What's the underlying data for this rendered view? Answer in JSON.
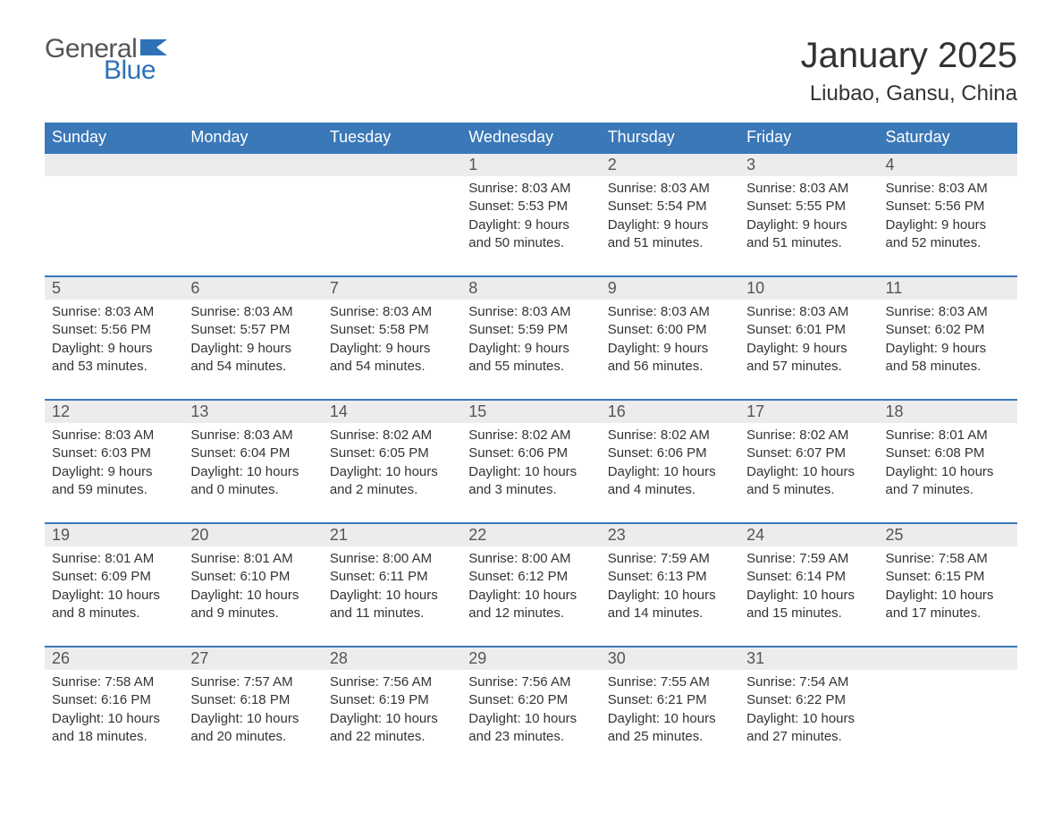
{
  "logo": {
    "word1": "General",
    "word2": "Blue",
    "flag_color": "#2d72b8"
  },
  "title": "January 2025",
  "location": "Liubao, Gansu, China",
  "colors": {
    "header_bg": "#3a78b8",
    "header_text": "#ffffff",
    "daynum_bg": "#ececec",
    "daynum_border": "#3a78b8",
    "body_text": "#333333",
    "page_bg": "#ffffff"
  },
  "typography": {
    "title_fontsize": 40,
    "location_fontsize": 24,
    "weekday_fontsize": 18,
    "daynum_fontsize": 18,
    "cell_fontsize": 15
  },
  "weekdays": [
    "Sunday",
    "Monday",
    "Tuesday",
    "Wednesday",
    "Thursday",
    "Friday",
    "Saturday"
  ],
  "weeks": [
    [
      null,
      null,
      null,
      {
        "d": "1",
        "sr": "8:03 AM",
        "ss": "5:53 PM",
        "dl": "9 hours and 50 minutes."
      },
      {
        "d": "2",
        "sr": "8:03 AM",
        "ss": "5:54 PM",
        "dl": "9 hours and 51 minutes."
      },
      {
        "d": "3",
        "sr": "8:03 AM",
        "ss": "5:55 PM",
        "dl": "9 hours and 51 minutes."
      },
      {
        "d": "4",
        "sr": "8:03 AM",
        "ss": "5:56 PM",
        "dl": "9 hours and 52 minutes."
      }
    ],
    [
      {
        "d": "5",
        "sr": "8:03 AM",
        "ss": "5:56 PM",
        "dl": "9 hours and 53 minutes."
      },
      {
        "d": "6",
        "sr": "8:03 AM",
        "ss": "5:57 PM",
        "dl": "9 hours and 54 minutes."
      },
      {
        "d": "7",
        "sr": "8:03 AM",
        "ss": "5:58 PM",
        "dl": "9 hours and 54 minutes."
      },
      {
        "d": "8",
        "sr": "8:03 AM",
        "ss": "5:59 PM",
        "dl": "9 hours and 55 minutes."
      },
      {
        "d": "9",
        "sr": "8:03 AM",
        "ss": "6:00 PM",
        "dl": "9 hours and 56 minutes."
      },
      {
        "d": "10",
        "sr": "8:03 AM",
        "ss": "6:01 PM",
        "dl": "9 hours and 57 minutes."
      },
      {
        "d": "11",
        "sr": "8:03 AM",
        "ss": "6:02 PM",
        "dl": "9 hours and 58 minutes."
      }
    ],
    [
      {
        "d": "12",
        "sr": "8:03 AM",
        "ss": "6:03 PM",
        "dl": "9 hours and 59 minutes."
      },
      {
        "d": "13",
        "sr": "8:03 AM",
        "ss": "6:04 PM",
        "dl": "10 hours and 0 minutes."
      },
      {
        "d": "14",
        "sr": "8:02 AM",
        "ss": "6:05 PM",
        "dl": "10 hours and 2 minutes."
      },
      {
        "d": "15",
        "sr": "8:02 AM",
        "ss": "6:06 PM",
        "dl": "10 hours and 3 minutes."
      },
      {
        "d": "16",
        "sr": "8:02 AM",
        "ss": "6:06 PM",
        "dl": "10 hours and 4 minutes."
      },
      {
        "d": "17",
        "sr": "8:02 AM",
        "ss": "6:07 PM",
        "dl": "10 hours and 5 minutes."
      },
      {
        "d": "18",
        "sr": "8:01 AM",
        "ss": "6:08 PM",
        "dl": "10 hours and 7 minutes."
      }
    ],
    [
      {
        "d": "19",
        "sr": "8:01 AM",
        "ss": "6:09 PM",
        "dl": "10 hours and 8 minutes."
      },
      {
        "d": "20",
        "sr": "8:01 AM",
        "ss": "6:10 PM",
        "dl": "10 hours and 9 minutes."
      },
      {
        "d": "21",
        "sr": "8:00 AM",
        "ss": "6:11 PM",
        "dl": "10 hours and 11 minutes."
      },
      {
        "d": "22",
        "sr": "8:00 AM",
        "ss": "6:12 PM",
        "dl": "10 hours and 12 minutes."
      },
      {
        "d": "23",
        "sr": "7:59 AM",
        "ss": "6:13 PM",
        "dl": "10 hours and 14 minutes."
      },
      {
        "d": "24",
        "sr": "7:59 AM",
        "ss": "6:14 PM",
        "dl": "10 hours and 15 minutes."
      },
      {
        "d": "25",
        "sr": "7:58 AM",
        "ss": "6:15 PM",
        "dl": "10 hours and 17 minutes."
      }
    ],
    [
      {
        "d": "26",
        "sr": "7:58 AM",
        "ss": "6:16 PM",
        "dl": "10 hours and 18 minutes."
      },
      {
        "d": "27",
        "sr": "7:57 AM",
        "ss": "6:18 PM",
        "dl": "10 hours and 20 minutes."
      },
      {
        "d": "28",
        "sr": "7:56 AM",
        "ss": "6:19 PM",
        "dl": "10 hours and 22 minutes."
      },
      {
        "d": "29",
        "sr": "7:56 AM",
        "ss": "6:20 PM",
        "dl": "10 hours and 23 minutes."
      },
      {
        "d": "30",
        "sr": "7:55 AM",
        "ss": "6:21 PM",
        "dl": "10 hours and 25 minutes."
      },
      {
        "d": "31",
        "sr": "7:54 AM",
        "ss": "6:22 PM",
        "dl": "10 hours and 27 minutes."
      },
      null
    ]
  ],
  "labels": {
    "sunrise": "Sunrise:",
    "sunset": "Sunset:",
    "daylight": "Daylight:"
  }
}
